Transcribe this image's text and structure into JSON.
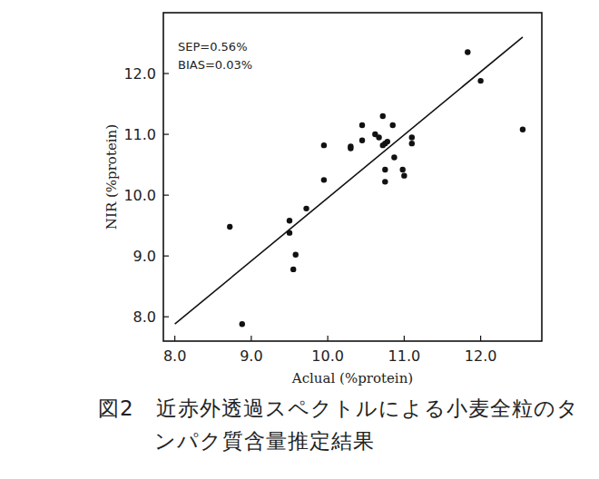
{
  "chart_data": {
    "type": "scatter",
    "title": "図2　近赤外透過スペクトルによる小麦全粒のタンパク質含量推定結果",
    "x_label": "Aclual (%protein)",
    "y_label": "NIR (%protein)",
    "annotations": [
      "SEP=0.56%",
      "BIAS=0.03%"
    ],
    "xlim": [
      7.85,
      12.8
    ],
    "ylim": [
      7.6,
      13.0
    ],
    "xticks": [
      {
        "value": 8,
        "label": "8.0"
      },
      {
        "value": 9,
        "label": "9.0"
      },
      {
        "value": 10,
        "label": "10.0"
      },
      {
        "value": 11,
        "label": "11.0"
      },
      {
        "value": 12,
        "label": "12.0"
      }
    ],
    "yticks": [
      {
        "value": 8,
        "label": "8.0"
      },
      {
        "value": 9,
        "label": "9.0"
      },
      {
        "value": 10,
        "label": "10.0"
      },
      {
        "value": 11,
        "label": "11.0"
      },
      {
        "value": 12,
        "label": "12.0"
      }
    ],
    "grid": false,
    "series": [
      {
        "type": "scatter",
        "color": "#111111",
        "marker": "circle",
        "x": [
          11.83,
          12.0,
          12.55,
          10.45,
          10.72,
          10.85,
          9.95,
          10.3,
          10.3,
          10.45,
          10.62,
          10.67,
          10.75,
          10.78,
          10.72,
          10.87,
          11.1,
          11.1,
          10.75,
          10.75,
          10.98,
          11.0,
          9.95,
          9.72,
          9.5,
          9.5,
          9.58,
          9.55,
          8.72,
          8.88
        ],
        "values": [
          12.35,
          11.88,
          11.08,
          11.15,
          11.3,
          11.15,
          10.82,
          10.8,
          10.77,
          10.9,
          11.0,
          10.95,
          10.85,
          10.88,
          10.82,
          10.62,
          10.95,
          10.85,
          10.42,
          10.22,
          10.42,
          10.32,
          10.25,
          9.78,
          9.58,
          9.38,
          9.02,
          8.78,
          9.48,
          7.88
        ]
      },
      {
        "type": "line",
        "color": "#111111",
        "line_style": "solid",
        "x": [
          8.0,
          12.55
        ],
        "values": [
          7.88,
          12.6
        ]
      }
    ]
  }
}
